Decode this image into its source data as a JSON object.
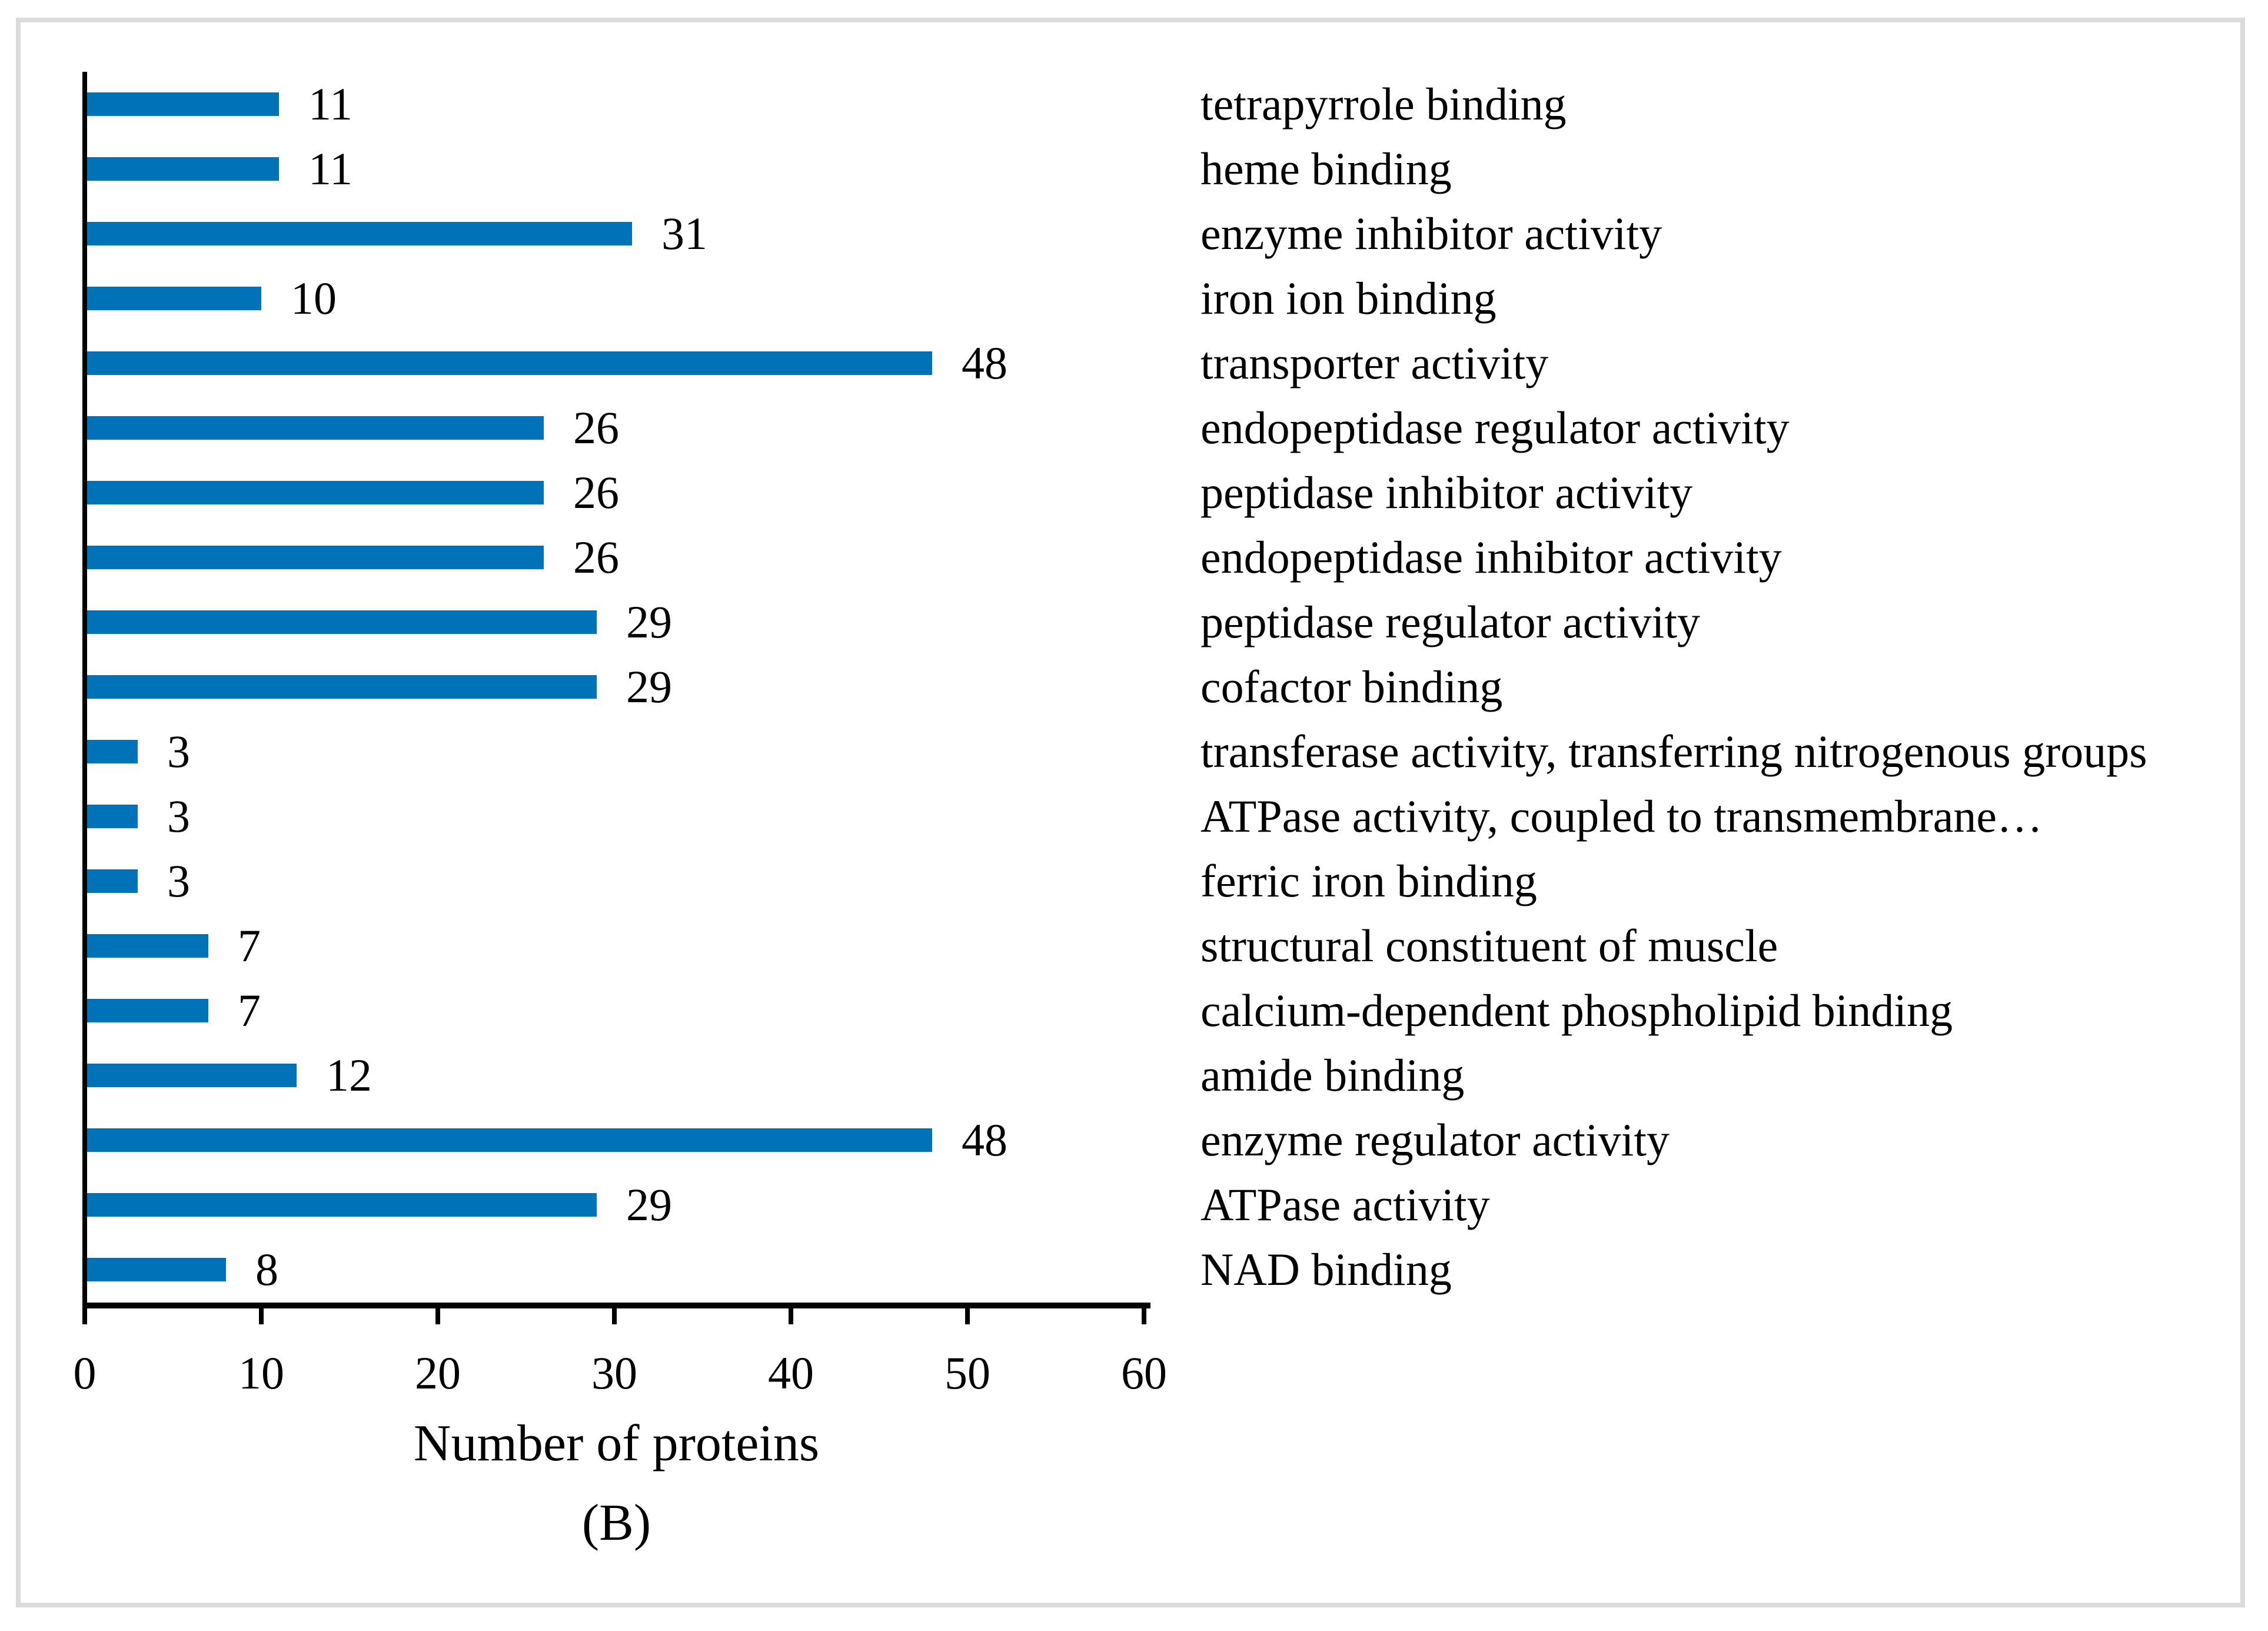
{
  "chart_data": {
    "type": "bar",
    "orientation": "horizontal",
    "title": "",
    "xlabel": "Number of proteins",
    "panel_label": "(B)",
    "xlim": [
      0,
      60
    ],
    "xticks": [
      0,
      10,
      20,
      30,
      40,
      50,
      60
    ],
    "grid": false,
    "legend": "none",
    "bar_color": "#0073b8",
    "axis_color": "#000000",
    "frame_color": "#dbdbdb",
    "categories": [
      "tetrapyrrole binding",
      "heme binding",
      "enzyme inhibitor activity",
      "iron ion binding",
      "transporter activity",
      "endopeptidase regulator activity",
      "peptidase inhibitor activity",
      "endopeptidase inhibitor activity",
      "peptidase regulator activity",
      "cofactor binding",
      "transferase activity, transferring nitrogenous groups",
      "ATPase activity, coupled to transmembrane…",
      "ferric iron binding",
      "structural constituent of muscle",
      "calcium-dependent phospholipid binding",
      "amide binding",
      "enzyme regulator activity",
      "ATPase activity",
      "NAD binding"
    ],
    "values": [
      11,
      11,
      31,
      10,
      48,
      26,
      26,
      26,
      29,
      29,
      3,
      3,
      3,
      7,
      7,
      12,
      48,
      29,
      8
    ]
  }
}
